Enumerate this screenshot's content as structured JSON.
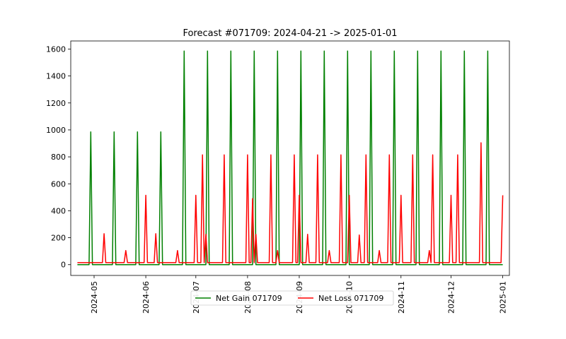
{
  "chart_data": {
    "type": "line",
    "title": "Forecast #071709: 2024-04-21 -> 2025-01-01",
    "xlabel": "",
    "ylabel": "",
    "x_range": [
      "2024-04-21",
      "2025-01-01"
    ],
    "ylim": [
      -80,
      1660
    ],
    "y_ticks": [
      0,
      200,
      400,
      600,
      800,
      1000,
      1200,
      1400,
      1600
    ],
    "x_ticks": [
      "2024-05",
      "2024-06",
      "2024-07",
      "2024-08",
      "2024-09",
      "2024-10",
      "2024-11",
      "2024-12",
      "2025-01"
    ],
    "grid": false,
    "legend_position": "bottom-center",
    "series": [
      {
        "name": "Net Gain 071709",
        "color": "#008000",
        "baseline": 0,
        "spikes": [
          {
            "date": "2024-04-29",
            "value": 985
          },
          {
            "date": "2024-05-13",
            "value": 985
          },
          {
            "date": "2024-05-27",
            "value": 985
          },
          {
            "date": "2024-06-10",
            "value": 985
          },
          {
            "date": "2024-06-24",
            "value": 1585
          },
          {
            "date": "2024-07-08",
            "value": 1585
          },
          {
            "date": "2024-07-22",
            "value": 1585
          },
          {
            "date": "2024-08-05",
            "value": 1585
          },
          {
            "date": "2024-08-19",
            "value": 1585
          },
          {
            "date": "2024-09-02",
            "value": 1585
          },
          {
            "date": "2024-09-16",
            "value": 1585
          },
          {
            "date": "2024-09-30",
            "value": 1585
          },
          {
            "date": "2024-10-14",
            "value": 1585
          },
          {
            "date": "2024-10-28",
            "value": 1585
          },
          {
            "date": "2024-11-11",
            "value": 1585
          },
          {
            "date": "2024-11-25",
            "value": 1585
          },
          {
            "date": "2024-12-09",
            "value": 1585
          },
          {
            "date": "2024-12-23",
            "value": 1585
          }
        ]
      },
      {
        "name": "Net Loss 071709",
        "color": "#ff0000",
        "baseline": 15,
        "spikes": [
          {
            "date": "2024-05-07",
            "value": 230
          },
          {
            "date": "2024-05-20",
            "value": 105
          },
          {
            "date": "2024-06-01",
            "value": 515
          },
          {
            "date": "2024-06-07",
            "value": 230
          },
          {
            "date": "2024-06-20",
            "value": 105
          },
          {
            "date": "2024-07-01",
            "value": 515
          },
          {
            "date": "2024-07-05",
            "value": 815
          },
          {
            "date": "2024-07-07",
            "value": 225
          },
          {
            "date": "2024-07-18",
            "value": 815
          },
          {
            "date": "2024-08-01",
            "value": 815
          },
          {
            "date": "2024-08-04",
            "value": 490
          },
          {
            "date": "2024-08-06",
            "value": 225
          },
          {
            "date": "2024-08-15",
            "value": 815
          },
          {
            "date": "2024-08-19",
            "value": 105
          },
          {
            "date": "2024-08-29",
            "value": 815
          },
          {
            "date": "2024-09-01",
            "value": 515
          },
          {
            "date": "2024-09-06",
            "value": 225
          },
          {
            "date": "2024-09-12",
            "value": 815
          },
          {
            "date": "2024-09-19",
            "value": 105
          },
          {
            "date": "2024-09-26",
            "value": 815
          },
          {
            "date": "2024-10-01",
            "value": 515
          },
          {
            "date": "2024-10-07",
            "value": 220
          },
          {
            "date": "2024-10-11",
            "value": 815
          },
          {
            "date": "2024-10-19",
            "value": 105
          },
          {
            "date": "2024-10-25",
            "value": 815
          },
          {
            "date": "2024-11-01",
            "value": 515
          },
          {
            "date": "2024-11-08",
            "value": 815
          },
          {
            "date": "2024-11-18",
            "value": 105
          },
          {
            "date": "2024-11-20",
            "value": 815
          },
          {
            "date": "2024-12-01",
            "value": 515
          },
          {
            "date": "2024-12-05",
            "value": 815
          },
          {
            "date": "2024-12-19",
            "value": 905
          },
          {
            "date": "2025-01-01",
            "value": 515
          }
        ]
      }
    ]
  }
}
